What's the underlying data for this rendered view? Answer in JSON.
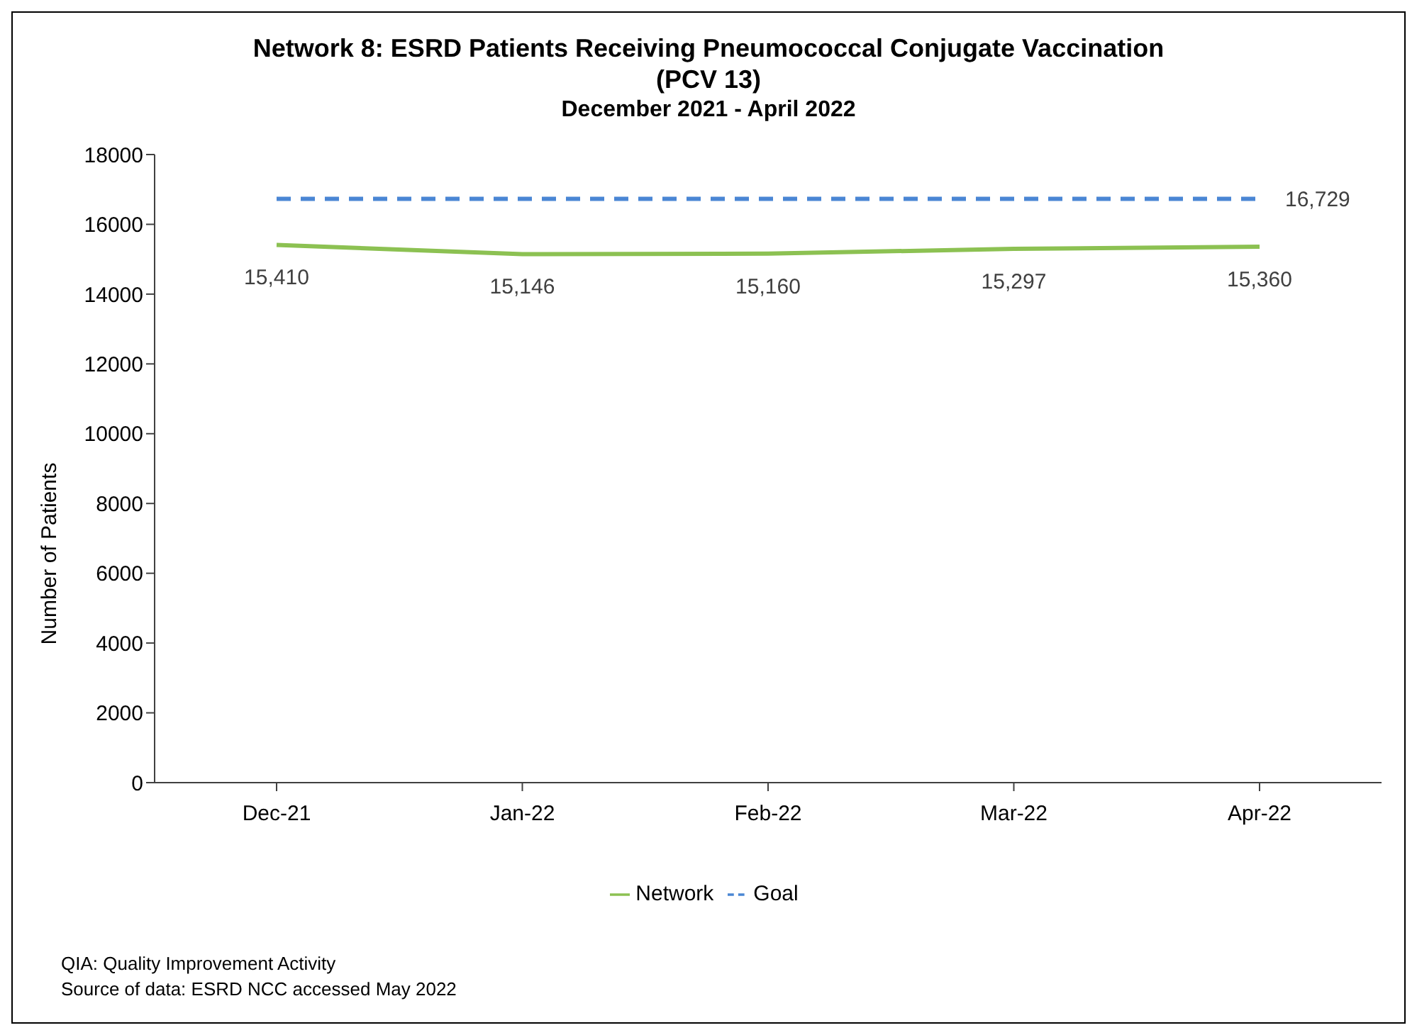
{
  "chart_data": {
    "type": "line",
    "title": "Network 8: ESRD Patients Receiving Pneumococcal Conjugate Vaccination (PCV 13)",
    "subtitle": "December 2021 - April 2022",
    "ylabel": "Number of Patients",
    "categories": [
      "Dec-21",
      "Jan-22",
      "Feb-22",
      "Mar-22",
      "Apr-22"
    ],
    "series": [
      {
        "name": "Network",
        "color": "#8cc152",
        "values": [
          15410,
          15146,
          15160,
          15297,
          15360
        ],
        "value_labels": [
          "15,410",
          "15,146",
          "15,160",
          "15,297",
          "15,360"
        ],
        "line_style": "solid"
      },
      {
        "name": "Goal",
        "color": "#4a86d4",
        "values": [
          16729,
          16729,
          16729,
          16729,
          16729
        ],
        "value_labels": [
          null,
          null,
          null,
          null,
          "16,729"
        ],
        "line_style": "dashed"
      }
    ],
    "ylim": [
      0,
      18000
    ],
    "yticks": [
      0,
      2000,
      4000,
      6000,
      8000,
      10000,
      12000,
      14000,
      16000,
      18000
    ],
    "marker": "none",
    "legend": "bottom",
    "grid": false,
    "annotations": [
      "QIA:  Quality Improvement Activity",
      "Source of data:  ESRD NCC accessed May 2022"
    ]
  }
}
